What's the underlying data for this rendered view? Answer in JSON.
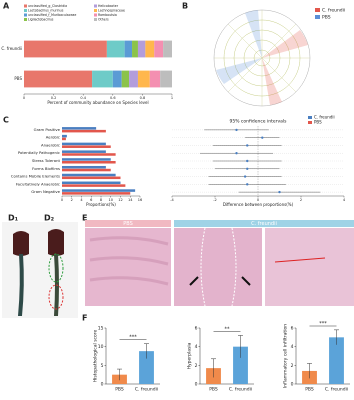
{
  "panels": {
    "a": "A",
    "b": "B",
    "c": "C",
    "d1": "D₁",
    "d2": "D₂",
    "e": "E",
    "f": "F"
  },
  "cladogram_legend": [
    {
      "name": "C. freundii",
      "color": "#e2574c"
    },
    {
      "name": "PBS",
      "color": "#5b8fd6"
    }
  ],
  "histology_labels": [
    "PBS",
    "C. freundii"
  ],
  "chart_data": [
    {
      "type": "stacked-bar",
      "categories": [
        "C. freundii",
        "PBS"
      ],
      "series": [
        {
          "name": "unclassified_g_Clostridia",
          "color": "#e8776b",
          "values": [
            0.56,
            0.46
          ]
        },
        {
          "name": "Lactobacillus_murinus",
          "color": "#6ecbc8",
          "values": [
            0.12,
            0.14
          ]
        },
        {
          "name": "unclassified_f_Muribaculaceae",
          "color": "#5b9bd5",
          "values": [
            0.05,
            0.06
          ]
        },
        {
          "name": "Ligilactobacillus",
          "color": "#8bc34a",
          "values": [
            0.04,
            0.05
          ]
        },
        {
          "name": "Helicobacter",
          "color": "#b39ddb",
          "values": [
            0.05,
            0.06
          ]
        },
        {
          "name": "Lachnospiraceae",
          "color": "#ffb74d",
          "values": [
            0.06,
            0.08
          ]
        },
        {
          "name": "Romboutsia",
          "color": "#f48fb1",
          "values": [
            0.06,
            0.07
          ]
        },
        {
          "name": "Others",
          "color": "#bdbdbd",
          "values": [
            0.06,
            0.08
          ]
        }
      ],
      "xlim": [
        0,
        1
      ],
      "xticks": [
        0,
        0.2,
        0.4,
        0.6,
        0.8,
        1
      ],
      "x_label": "Percent of community abundance on Species level"
    },
    {
      "type": "hbar",
      "categories": [
        "Gram Positive",
        "Aerobic",
        "Anaerobic",
        "Potentially Pathogenic",
        "Stress Tolerant",
        "Forms Biofilms",
        "Contains Mobile Elements",
        "Facultatively Anaerobic",
        "Gram Negative"
      ],
      "series": [
        {
          "name": "C. freundii",
          "color": "#4a7fc1",
          "values": [
            7,
            1,
            9,
            9,
            10,
            9,
            11,
            12,
            15
          ]
        },
        {
          "name": "PBS",
          "color": "#e2574c",
          "values": [
            9,
            0.8,
            10,
            11,
            11,
            10,
            12,
            13,
            14
          ]
        }
      ],
      "xlim": [
        0,
        16
      ],
      "xticks": [
        0,
        2,
        4,
        6,
        8,
        10,
        12,
        14,
        16
      ],
      "x_label": "Proportions(%)"
    },
    {
      "type": "errorbar",
      "title": "95% confidence intervals",
      "color": "#4a7fc1",
      "values": [
        -1,
        0.2,
        -0.5,
        -1,
        -0.5,
        -0.5,
        -0.6,
        -0.5,
        1
      ],
      "errors": [
        1.5,
        0.8,
        1.6,
        1.7,
        1.6,
        1.5,
        1.7,
        1.8,
        1.9
      ],
      "xlim": [
        -4,
        4
      ],
      "xticks": [
        -4,
        -2,
        0,
        2,
        4
      ],
      "x_label": "Difference between proportions(%)"
    },
    {
      "type": "bar",
      "categories": [
        "PBS",
        "C. freundii"
      ],
      "colors": [
        "#f08a4b",
        "#5ba3d9"
      ],
      "values": [
        2.5,
        8.8
      ],
      "errors": [
        1.5,
        2.0
      ],
      "ylim": [
        0,
        15
      ],
      "yticks": [
        0,
        5,
        10,
        15
      ],
      "y_label": "Histopathological score",
      "significance": "***"
    },
    {
      "type": "bar",
      "categories": [
        "PBS",
        "C. freundii"
      ],
      "colors": [
        "#f08a4b",
        "#5ba3d9"
      ],
      "values": [
        1.7,
        4.0
      ],
      "errors": [
        1.0,
        1.2
      ],
      "ylim": [
        0,
        6
      ],
      "yticks": [
        0,
        2,
        4,
        6
      ],
      "y_label": "Hyperplasia",
      "significance": "**"
    },
    {
      "type": "bar",
      "categories": [
        "PBS",
        "C. freundii"
      ],
      "colors": [
        "#f08a4b",
        "#5ba3d9"
      ],
      "values": [
        1.4,
        5.0
      ],
      "errors": [
        0.8,
        0.8
      ],
      "ylim": [
        0,
        6
      ],
      "yticks": [
        0,
        2,
        4,
        6
      ],
      "y_label": "Inflammatory cell infiltration",
      "significance": "***"
    }
  ]
}
